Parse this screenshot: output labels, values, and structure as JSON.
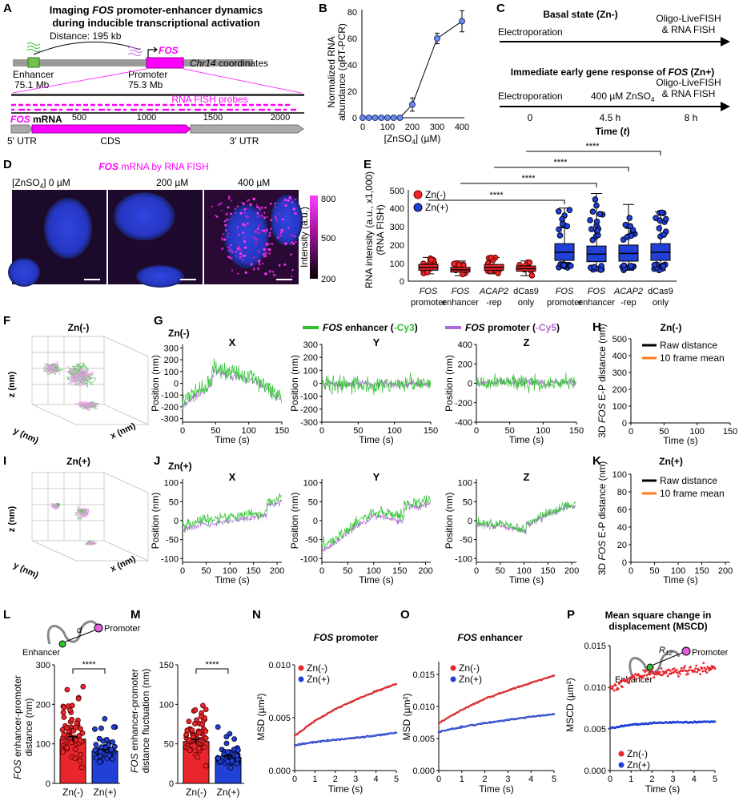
{
  "figure": {
    "panelA": {
      "letter": "A",
      "title1a": "Imaging ",
      "title1b": "FOS",
      "title1c": " promoter-enhancer dynamics",
      "title2": "during inducible transcriptional activation",
      "distance": "Distance: 195 kb",
      "gene": "FOS",
      "chr": "Chr14",
      "coords": " coordinates",
      "enhancer": "Enhancer",
      "enhancer_pos": "75.1 Mb",
      "promoter": "Promoter",
      "promoter_pos": "75.3 Mb",
      "probes": "RNA FISH probes",
      "mrna_a": "FOS",
      "mrna_b": " mRNA",
      "ticks": [
        "500",
        "1000",
        "1500",
        "2000"
      ],
      "utr5": "5' UTR",
      "cds": "CDS",
      "utr3": "3' UTR"
    },
    "panelB": {
      "letter": "B",
      "ylabel1": "Normalized RNA",
      "ylabel2": "abundance (qRT-PCR)",
      "xlabel": "[ZnSO",
      "xlabel_sub": "4",
      "xlabel_end": "] (µM)",
      "xticks": [
        "0",
        "100",
        "200",
        "300",
        "400"
      ],
      "yticks": [
        "0",
        "20",
        "40",
        "60",
        "80"
      ]
    },
    "panelC": {
      "letter": "C",
      "basal": "Basal state (Zn-)",
      "electro1": "Electroporation",
      "oligo1a": "Oligo-LiveFISH",
      "oligo1b": "& RNA FISH",
      "ieg_a": "Immediate early gene response of ",
      "ieg_b": "FOS",
      "ieg_c": " (Zn+)",
      "electro2": "Electroporation",
      "zn_a": "400 µM ZnSO",
      "zn_sub": "4",
      "oligo2a": "Oligo-LiveFISH",
      "oligo2b": "& RNA FISH",
      "t0": "0",
      "t1": "4.5 h",
      "t2": "8 h",
      "time_a": "Time (",
      "time_b": "t",
      "time_c": ")"
    },
    "panelD": {
      "letter": "D",
      "title_a": "FOS",
      "title_b": " mRNA by RNA FISH",
      "conc_a": "[ZnSO",
      "conc_sub": "4",
      "conc_b": "]  0 µM",
      "c200": "200 µM",
      "c400": "400 µM",
      "cbar_label": "Intensity (a.u.)",
      "cbar_ticks": [
        "800",
        "500",
        "200"
      ]
    },
    "panelE": {
      "letter": "E",
      "ylabel1": "RNA intensity (a.u., x1,000)",
      "ylabel2": "(RNA FISH)",
      "legend_neg": "Zn(-)",
      "legend_pos": "Zn(+)",
      "yticks": [
        "0",
        "100",
        "200",
        "300",
        "400",
        "500"
      ],
      "groups": [
        [
          "FOS",
          "promoter"
        ],
        [
          "FOS",
          "enhancer"
        ],
        [
          "ACAP2",
          "-rep"
        ],
        [
          "dCas9",
          "only"
        ],
        [
          "FOS",
          "promoter"
        ],
        [
          "FOS",
          "enhancer"
        ],
        [
          "ACAP2",
          "-rep"
        ],
        [
          "dCas9",
          "only"
        ]
      ],
      "sig": [
        "****",
        "****",
        "****",
        "****"
      ]
    },
    "panelF": {
      "letter": "F",
      "title": "Zn(-)",
      "z": "z (nm)",
      "y": "y (nm)",
      "x": "x (nm)"
    },
    "panelG": {
      "letter": "G",
      "cond": "Zn(-)",
      "legend_enh_a": "FOS",
      "legend_enh_b": " enhancer (",
      "legend_enh_c": "-Cy3",
      ")": ")",
      "legend_pro_a": "FOS",
      "legend_pro_b": " promoter (",
      "legend_pro_c": "-Cy5",
      "axes": [
        "X",
        "Y",
        "Z"
      ],
      "ylabel": "Position (nm)",
      "xlabel": "Time (s)"
    },
    "panelH": {
      "letter": "H",
      "cond": "Zn(-)",
      "raw": "Raw distance",
      "mean": "10 frame mean",
      "ylabel_a": "3D ",
      "ylabel_b": "FOS",
      "ylabel_c": " E-P distance (nm)",
      "xlabel": "Time (s)"
    },
    "panelI": {
      "letter": "I",
      "title": "Zn(+)",
      "z": "z (nm)",
      "y": "y (nm)",
      "x": "x (nm)"
    },
    "panelJ": {
      "letter": "J",
      "cond": "Zn(+)",
      "axes": [
        "X",
        "Y",
        "Z"
      ],
      "ylabel": "Position (nm)",
      "xlabel": "Time (s)"
    },
    "panelK": {
      "letter": "K",
      "cond": "Zn(+)",
      "raw": "Raw distance",
      "mean": "10 frame mean",
      "ylabel_a": "3D ",
      "ylabel_b": "FOS",
      "ylabel_c": " E-P distance (nm)",
      "xlabel": "Time (s)"
    },
    "panelL": {
      "letter": "L",
      "d": "d",
      "promoter": "Promoter",
      "enhancer": "Enhancer",
      "ylabel1_a": "FOS",
      "ylabel1_b": " enhancer-promoter",
      "ylabel2": "distance (nm)",
      "sig": "****",
      "cats": [
        "Zn(-)",
        "Zn(+)"
      ]
    },
    "panelM": {
      "letter": "M",
      "ylabel1_a": "FOS",
      "ylabel1_b": " enhancer-promoter",
      "ylabel2": "distance fluctuation (nm)",
      "sig": "****",
      "cats": [
        "Zn(-)",
        "Zn(+)"
      ]
    },
    "panelN": {
      "letter": "N",
      "title_a": "FOS",
      "title_b": " promoter",
      "ylabel": "MSD (µm²)",
      "xlabel": "Time (s)",
      "neg": "Zn(-)",
      "pos": "Zn(+)"
    },
    "panelO": {
      "letter": "O",
      "title_a": "FOS",
      "title_b": " enhancer",
      "ylabel": "MSD (µm²)",
      "xlabel": "Time (s)",
      "neg": "Zn(-)",
      "pos": "Zn(+)"
    },
    "panelP": {
      "letter": "P",
      "title1": "Mean square change in",
      "title2": "displacement (MSCD)",
      "r": "R",
      "r_sub": "12",
      "promoter": "Promoter",
      "enhancer": "Enhancer",
      "ylabel": "MSCD (µm²)",
      "xlabel": "Time (s)",
      "neg": "Zn(-)",
      "pos": "Zn(+)"
    }
  },
  "colors": {
    "green": "#2fc22f",
    "purple": "#b06ad8",
    "magenta": "#ff00ff",
    "red": "#e8262b",
    "blue": "#2040d8",
    "orange": "#ff7a1a"
  },
  "chart_data": [
    {
      "type": "line",
      "panel": "B",
      "title": "",
      "xlabel": "[ZnSO4] (µM)",
      "ylabel": "Normalized RNA abundance (qRT-PCR)",
      "xlim": [
        0,
        400
      ],
      "ylim": [
        0,
        80
      ],
      "x": [
        0,
        25,
        50,
        75,
        100,
        125,
        150,
        200,
        300,
        400
      ],
      "values": [
        0,
        0,
        0,
        0,
        0,
        0,
        0,
        10,
        60,
        73
      ],
      "errors": [
        0,
        0,
        0,
        0,
        0,
        0,
        0,
        5,
        4,
        8
      ]
    },
    {
      "type": "bar",
      "panel": "E",
      "title": "RNA intensity",
      "ylabel": "RNA intensity (a.u., x1,000) (RNA FISH)",
      "ylim": [
        0,
        500
      ],
      "categories": [
        "FOS promoter Zn(-)",
        "FOS enhancer Zn(-)",
        "ACAP2-rep Zn(-)",
        "dCas9 only Zn(-)",
        "FOS promoter Zn(+)",
        "FOS enhancer Zn(+)",
        "ACAP2-rep Zn(+)",
        "dCas9 only Zn(+)"
      ],
      "values": [
        75,
        62,
        75,
        68,
        158,
        148,
        152,
        158
      ]
    },
    {
      "type": "bar",
      "panel": "L",
      "categories": [
        "Zn(-)",
        "Zn(+)"
      ],
      "values": [
        112,
        82
      ],
      "errors": [
        6,
        4
      ],
      "ylim": [
        0,
        300
      ],
      "ylabel": "FOS enhancer-promoter distance (nm)"
    },
    {
      "type": "bar",
      "panel": "M",
      "categories": [
        "Zn(-)",
        "Zn(+)"
      ],
      "values": [
        53,
        33
      ],
      "errors": [
        3,
        2
      ],
      "ylim": [
        0,
        150
      ],
      "ylabel": "FOS enhancer-promoter distance fluctuation (nm)"
    },
    {
      "type": "line",
      "panel": "N",
      "title": "FOS promoter",
      "xlabel": "Time (s)",
      "ylabel": "MSD (µm²)",
      "xlim": [
        0,
        5
      ],
      "ylim": [
        0,
        0.01
      ],
      "series": [
        {
          "name": "Zn(-)",
          "x": [
            0,
            1,
            2,
            3,
            4,
            5
          ],
          "values": [
            0.0033,
            0.0047,
            0.0058,
            0.0067,
            0.0075,
            0.0082
          ]
        },
        {
          "name": "Zn(+)",
          "x": [
            0,
            1,
            2,
            3,
            4,
            5
          ],
          "values": [
            0.0024,
            0.0027,
            0.0029,
            0.0031,
            0.0033,
            0.0036
          ]
        }
      ]
    },
    {
      "type": "line",
      "panel": "O",
      "title": "FOS enhancer",
      "xlabel": "Time (s)",
      "ylabel": "MSD (µm²)",
      "xlim": [
        0,
        5
      ],
      "ylim": [
        0,
        0.017
      ],
      "series": [
        {
          "name": "Zn(-)",
          "x": [
            0,
            1,
            2,
            3,
            4,
            5
          ],
          "values": [
            0.0074,
            0.0095,
            0.0112,
            0.0125,
            0.0137,
            0.0148
          ]
        },
        {
          "name": "Zn(+)",
          "x": [
            0,
            1,
            2,
            3,
            4,
            5
          ],
          "values": [
            0.006,
            0.0068,
            0.0074,
            0.0079,
            0.0084,
            0.0088
          ]
        }
      ]
    },
    {
      "type": "scatter",
      "panel": "P",
      "title": "MSCD",
      "xlabel": "Time (s)",
      "ylabel": "MSCD (µm²)",
      "xlim": [
        0,
        5
      ],
      "ylim": [
        0,
        0.015
      ],
      "series": [
        {
          "name": "Zn(-)",
          "x": [
            0,
            1,
            2,
            3,
            4,
            5
          ],
          "values": [
            0.0098,
            0.0112,
            0.0117,
            0.0119,
            0.0121,
            0.0122
          ]
        },
        {
          "name": "Zn(+)",
          "x": [
            0,
            1,
            2,
            3,
            4,
            5
          ],
          "values": [
            0.0051,
            0.0055,
            0.0057,
            0.0058,
            0.0058,
            0.0059
          ]
        }
      ]
    }
  ]
}
